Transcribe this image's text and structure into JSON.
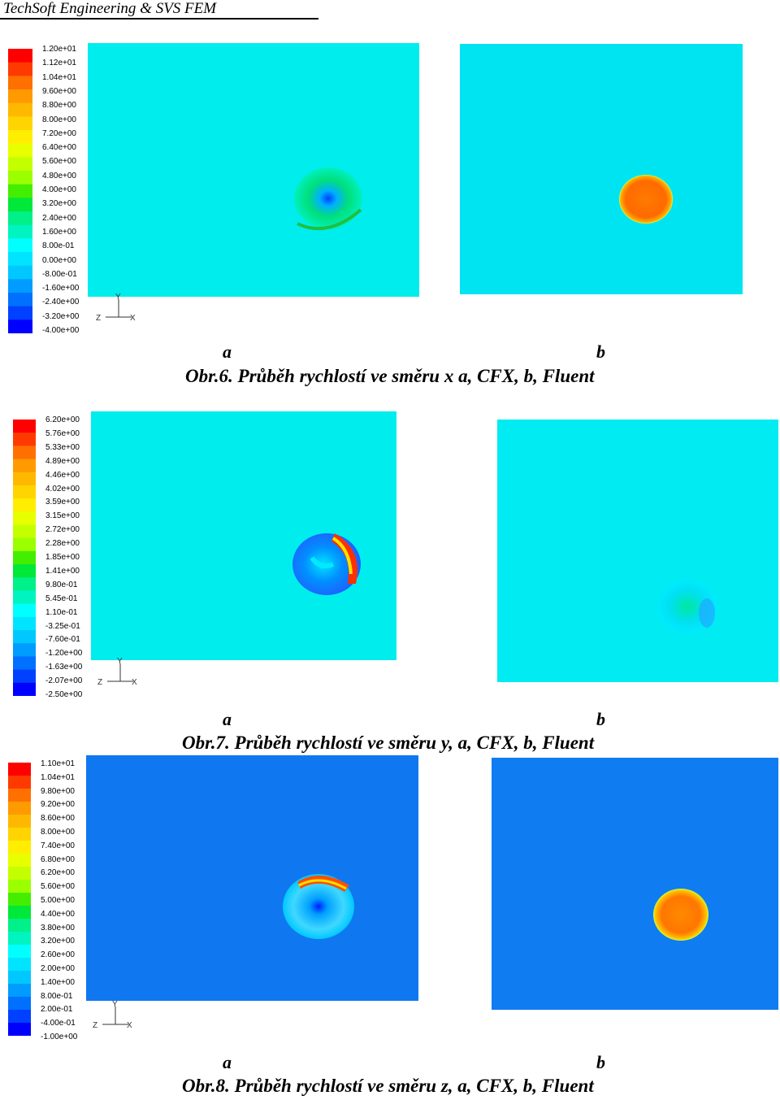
{
  "header": {
    "text": "TechSoft Engineering & SVS FEM"
  },
  "figures": [
    {
      "legend_labels": [
        "1.20e+01",
        "1.12e+01",
        "1.04e+01",
        "9.60e+00",
        "8.80e+00",
        "8.00e+00",
        "7.20e+00",
        "6.40e+00",
        "5.60e+00",
        "4.80e+00",
        "4.00e+00",
        "3.20e+00",
        "2.40e+00",
        "1.60e+00",
        "8.00e-01",
        "0.00e+00",
        "-8.00e-01",
        "-1.60e+00",
        "-2.40e+00",
        "-3.20e+00",
        "-4.00e+00"
      ],
      "axis": {
        "y": "Y",
        "z": "Z",
        "x": "X"
      },
      "sub_a": "a",
      "sub_b": "b",
      "caption": "Obr.6. Průběh rychlostí ve směru x a,  CFX, b, Fluent"
    },
    {
      "legend_labels": [
        "6.20e+00",
        "5.76e+00",
        "5.33e+00",
        "4.89e+00",
        "4.46e+00",
        "4.02e+00",
        "3.59e+00",
        "3.15e+00",
        "2.72e+00",
        "2.28e+00",
        "1.85e+00",
        "1.41e+00",
        "9.80e-01",
        "5.45e-01",
        "1.10e-01",
        "-3.25e-01",
        "-7.60e-01",
        "-1.20e+00",
        "-1.63e+00",
        "-2.07e+00",
        "-2.50e+00"
      ],
      "axis": {
        "y": "Y",
        "z": "Z",
        "x": "X"
      },
      "sub_a": "a",
      "sub_b": "b",
      "caption": "Obr.7. Průběh rychlostí ve směru y, a,  CFX, b, Fluent"
    },
    {
      "legend_labels": [
        "1.10e+01",
        "1.04e+01",
        "9.80e+00",
        "9.20e+00",
        "8.60e+00",
        "8.00e+00",
        "7.40e+00",
        "6.80e+00",
        "6.20e+00",
        "5.60e+00",
        "5.00e+00",
        "4.40e+00",
        "3.80e+00",
        "3.20e+00",
        "2.60e+00",
        "2.00e+00",
        "1.40e+00",
        "8.00e-01",
        "2.00e-01",
        "-4.00e-01",
        "-1.00e+00"
      ],
      "axis": {
        "y": "Y",
        "z": "Z",
        "x": "X"
      },
      "sub_a": "a",
      "sub_b": "b",
      "caption": "Obr.8. Průběh rychlostí ve směru z, a,  CFX, b, Fluent"
    }
  ],
  "colorscale": [
    "#ff0000",
    "#ff3a00",
    "#ff7000",
    "#ff9a00",
    "#ffb800",
    "#ffd400",
    "#ffee00",
    "#e8ff00",
    "#c4ff00",
    "#9cff00",
    "#44ee00",
    "#00e838",
    "#00f08a",
    "#00f4c0",
    "#00ffff",
    "#00e4ff",
    "#00c8ff",
    "#009cff",
    "#0070ff",
    "#0040ff",
    "#0000ff"
  ],
  "colors": {
    "cyan_bg": "#00eded",
    "blue_bg": "#0f78f0"
  }
}
